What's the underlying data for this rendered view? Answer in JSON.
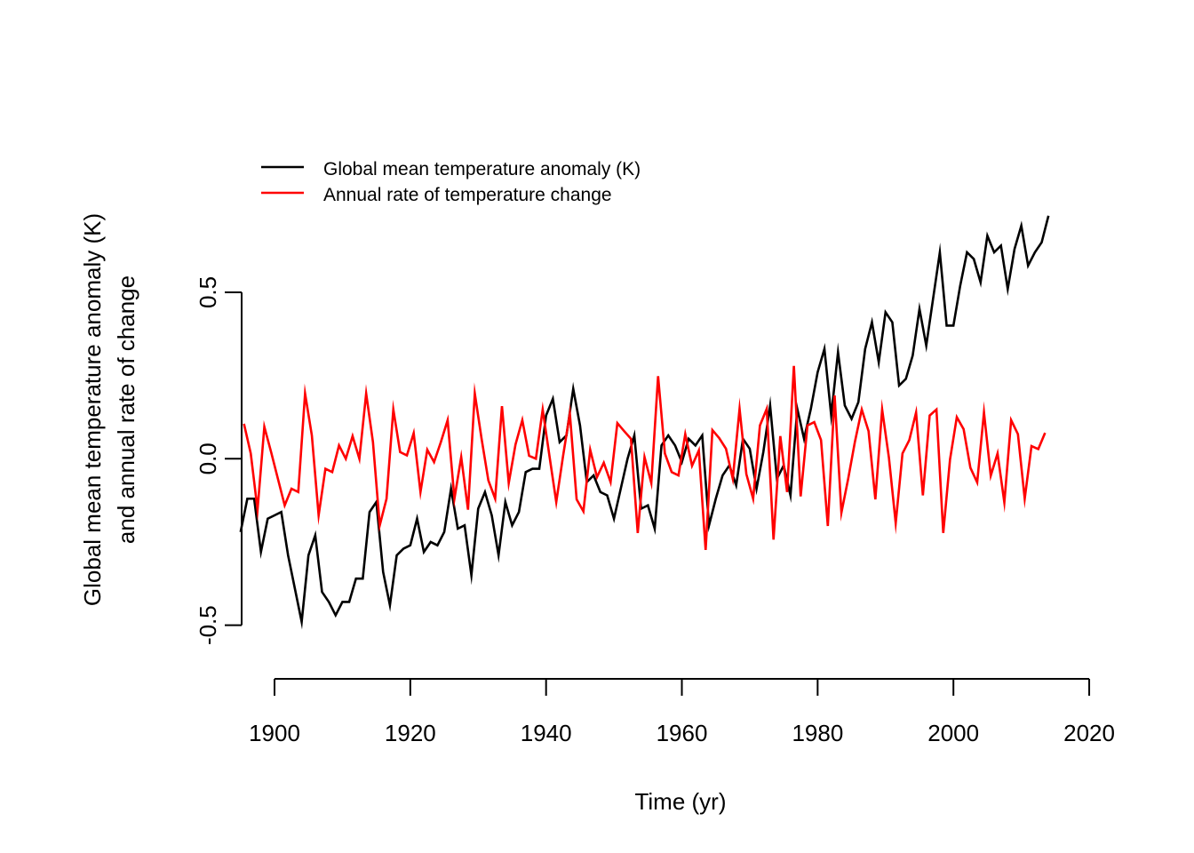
{
  "chart_data": {
    "type": "line",
    "title": "",
    "xlabel": "Time (yr)",
    "ylabel_lines": [
      "Global mean temperature anomaly (K)",
      "and annual rate of change"
    ],
    "xlim": [
      1895,
      2020
    ],
    "ylim": [
      -0.5,
      0.75
    ],
    "x_ticks": [
      1900,
      1920,
      1940,
      1960,
      1980,
      2000,
      2020
    ],
    "x_tick_labels": [
      "1900",
      "1920",
      "1940",
      "1960",
      "1980",
      "2000",
      "2020"
    ],
    "y_ticks": [
      -0.5,
      0.0,
      0.5
    ],
    "y_tick_labels": [
      "-0.5",
      "0.0",
      "0.5"
    ],
    "grid": false,
    "legend": {
      "position": "top-left",
      "entries": [
        {
          "label": "Global mean temperature anomaly (K)",
          "color": "#000000"
        },
        {
          "label": "Annual rate of temperature change",
          "color": "#ff0000"
        }
      ]
    },
    "series": [
      {
        "name": "Global mean temperature anomaly (K)",
        "color": "#000000",
        "x_start": 1895,
        "x_step": 1,
        "values": [
          -0.22,
          -0.12,
          -0.12,
          -0.28,
          -0.18,
          -0.17,
          -0.16,
          -0.29,
          -0.39,
          -0.49,
          -0.29,
          -0.23,
          -0.4,
          -0.43,
          -0.47,
          -0.43,
          -0.43,
          -0.36,
          -0.36,
          -0.16,
          -0.13,
          -0.34,
          -0.44,
          -0.29,
          -0.27,
          -0.26,
          -0.18,
          -0.28,
          -0.25,
          -0.26,
          -0.22,
          -0.09,
          -0.21,
          -0.2,
          -0.35,
          -0.15,
          -0.1,
          -0.17,
          -0.29,
          -0.13,
          -0.2,
          -0.16,
          -0.04,
          -0.03,
          -0.03,
          0.13,
          0.18,
          0.05,
          0.07,
          0.21,
          0.1,
          -0.07,
          -0.05,
          -0.1,
          -0.11,
          -0.18,
          -0.09,
          0.0,
          0.07,
          -0.15,
          -0.14,
          -0.21,
          0.04,
          0.07,
          0.04,
          -0.01,
          0.06,
          0.04,
          0.07,
          -0.2,
          -0.12,
          -0.05,
          -0.02,
          -0.08,
          0.06,
          0.03,
          -0.09,
          0.02,
          0.16,
          -0.06,
          -0.02,
          -0.11,
          0.15,
          0.06,
          0.15,
          0.26,
          0.33,
          0.13,
          0.32,
          0.16,
          0.12,
          0.17,
          0.33,
          0.41,
          0.29,
          0.44,
          0.41,
          0.22,
          0.24,
          0.31,
          0.45,
          0.34,
          0.48,
          0.62,
          0.4,
          0.4,
          0.52,
          0.62,
          0.6,
          0.53,
          0.67,
          0.62,
          0.64,
          0.51,
          0.63,
          0.7,
          0.58,
          0.62,
          0.65,
          0.73
        ]
      },
      {
        "name": "Annual rate of temperature change",
        "color": "#ff0000",
        "x_start": 1895.5,
        "x_step": 1,
        "values": [
          0.105,
          0.016,
          -0.153,
          0.096,
          0.02,
          -0.06,
          -0.14,
          -0.09,
          -0.1,
          0.196,
          0.07,
          -0.17,
          -0.03,
          -0.04,
          0.04,
          0.0,
          0.068,
          0.0,
          0.196,
          0.05,
          -0.2,
          -0.12,
          0.148,
          0.02,
          0.01,
          0.077,
          -0.1,
          0.027,
          -0.01,
          0.05,
          0.116,
          -0.12,
          0.005,
          -0.153,
          0.196,
          0.06,
          -0.065,
          -0.12,
          0.158,
          -0.073,
          0.043,
          0.116,
          0.009,
          0.0,
          0.148,
          0.008,
          -0.13,
          0.008,
          0.136,
          -0.122,
          -0.158,
          0.027,
          -0.055,
          -0.012,
          -0.07,
          0.107,
          0.083,
          0.06,
          -0.223,
          0.005,
          -0.073,
          0.248,
          0.016,
          -0.04,
          -0.05,
          0.074,
          -0.021,
          0.025,
          -0.274,
          0.086,
          0.062,
          0.03,
          -0.06,
          0.15,
          -0.046,
          -0.12,
          0.1,
          0.15,
          -0.243,
          0.068,
          -0.1,
          0.279,
          -0.113,
          0.1,
          0.11,
          0.056,
          -0.202,
          0.19,
          -0.162,
          -0.06,
          0.052,
          0.148,
          0.083,
          -0.122,
          0.148,
          0.003,
          -0.193,
          0.016,
          0.056,
          0.139,
          -0.11,
          0.13,
          0.148,
          -0.223,
          -0.002,
          0.125,
          0.089,
          -0.027,
          -0.071,
          0.139,
          -0.051,
          0.016,
          -0.131,
          0.116,
          0.074,
          -0.12,
          0.038,
          0.029,
          0.078
        ]
      }
    ]
  }
}
